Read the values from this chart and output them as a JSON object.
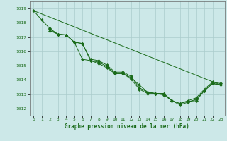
{
  "background_color": "#cce8e8",
  "grid_color": "#aacccc",
  "line_color": "#1a6b1a",
  "marker_color": "#1a6b1a",
  "xlabel": "Graphe pression niveau de la mer (hPa)",
  "xlim": [
    -0.5,
    23.5
  ],
  "ylim": [
    1011.5,
    1019.5
  ],
  "yticks": [
    1012,
    1013,
    1014,
    1015,
    1016,
    1017,
    1018,
    1019
  ],
  "xticks": [
    0,
    1,
    2,
    3,
    4,
    5,
    6,
    7,
    8,
    9,
    10,
    11,
    12,
    13,
    14,
    15,
    16,
    17,
    18,
    19,
    20,
    21,
    22,
    23
  ],
  "series": [
    {
      "x": [
        0,
        1,
        2,
        3,
        4,
        5,
        6,
        7,
        8,
        9,
        10,
        11,
        12,
        13,
        14,
        15,
        16,
        17,
        18,
        19,
        20,
        21,
        22,
        23
      ],
      "y": [
        1018.85,
        1018.2,
        1017.6,
        1017.2,
        1017.15,
        1016.65,
        1015.45,
        1015.35,
        1015.15,
        1014.85,
        1014.45,
        1014.45,
        1014.05,
        1013.35,
        1013.05,
        1013.05,
        1012.95,
        1012.55,
        1012.35,
        1012.5,
        1012.55,
        1013.25,
        1013.75,
        1013.65
      ],
      "marker": "D",
      "markersize": 2.0
    },
    {
      "x": [
        2,
        3,
        4,
        5,
        6,
        7,
        8,
        9,
        10,
        11,
        12,
        13,
        14,
        15,
        16,
        17,
        18,
        19,
        20,
        21,
        22,
        23
      ],
      "y": [
        1017.55,
        1017.2,
        1017.15,
        1016.65,
        1016.55,
        1015.35,
        1015.25,
        1014.95,
        1014.45,
        1014.45,
        1014.15,
        1013.65,
        1013.15,
        1013.05,
        1013.05,
        1012.55,
        1012.25,
        1012.45,
        1012.65,
        1013.25,
        1013.75,
        1013.65
      ],
      "marker": "D",
      "markersize": 2.0
    },
    {
      "x": [
        2,
        3,
        4,
        5,
        6,
        7,
        8,
        9,
        10,
        11,
        12,
        13,
        14,
        15,
        16,
        17,
        18,
        19,
        20,
        21,
        22,
        23
      ],
      "y": [
        1017.45,
        1017.2,
        1017.15,
        1016.65,
        1016.55,
        1015.45,
        1015.35,
        1015.05,
        1014.55,
        1014.55,
        1014.25,
        1013.45,
        1013.15,
        1013.05,
        1013.05,
        1012.55,
        1012.35,
        1012.55,
        1012.75,
        1013.35,
        1013.85,
        1013.75
      ],
      "marker": "D",
      "markersize": 2.0
    },
    {
      "x": [
        0,
        23
      ],
      "y": [
        1018.85,
        1013.65
      ],
      "marker": null,
      "markersize": 0
    }
  ]
}
